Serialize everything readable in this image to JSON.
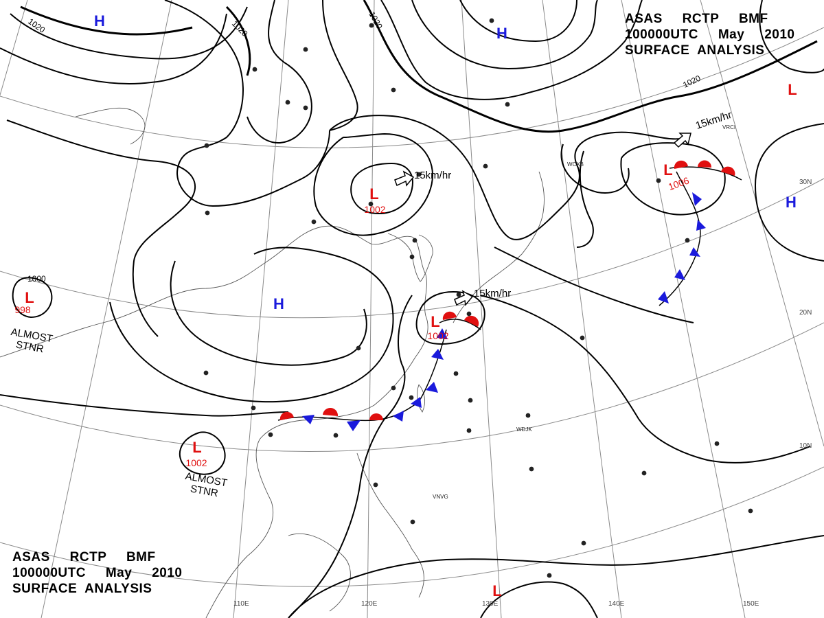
{
  "header": {
    "line1": "ASAS     RCTP     BMF",
    "line2": "100000UTC     May     2010",
    "line3": "SURFACE  ANALYSIS"
  },
  "footer": {
    "line1": "ASAS     RCTP     BMF",
    "line2": "100000UTC     May     2010",
    "line3": "SURFACE  ANALYSIS"
  },
  "colors": {
    "high": "#1a1adc",
    "low": "#e01010",
    "warm_front": "#e01010",
    "cold_front": "#1a1adc",
    "isobar": "#000000",
    "grid": "#888888"
  },
  "pressure_systems": [
    {
      "type": "H",
      "label": "H",
      "value": ""
    },
    {
      "type": "H",
      "label": "H",
      "value": ""
    },
    {
      "type": "H",
      "label": "H",
      "value": ""
    },
    {
      "type": "H",
      "label": "H",
      "value": ""
    },
    {
      "type": "L",
      "label": "L",
      "value": "998"
    },
    {
      "type": "L",
      "label": "L",
      "value": "1002"
    },
    {
      "type": "L",
      "label": "L",
      "value": "1002"
    },
    {
      "type": "L",
      "label": "L",
      "value": "1002"
    },
    {
      "type": "L",
      "label": "L",
      "value": "1006"
    },
    {
      "type": "L",
      "label": "L",
      "value": ""
    },
    {
      "type": "L",
      "label": "L",
      "value": ""
    }
  ],
  "isobar_labels": [
    "1020",
    "1020",
    "1020",
    "1020",
    "1000"
  ],
  "movement_labels": [
    "15km/hr",
    "15km/hr",
    "15km/hr"
  ],
  "stationary_notes": [
    {
      "line1": "ALMOST",
      "line2": "STNR"
    },
    {
      "line1": "ALMOST",
      "line2": "STNR"
    }
  ],
  "latitude_labels": [
    "30N",
    "20N",
    "10N"
  ],
  "longitude_labels": [
    "110E",
    "120E",
    "130E",
    "140E",
    "150E"
  ],
  "station_codes": [
    "WCXB",
    "VRCI",
    "WDJK",
    "VNVG"
  ]
}
